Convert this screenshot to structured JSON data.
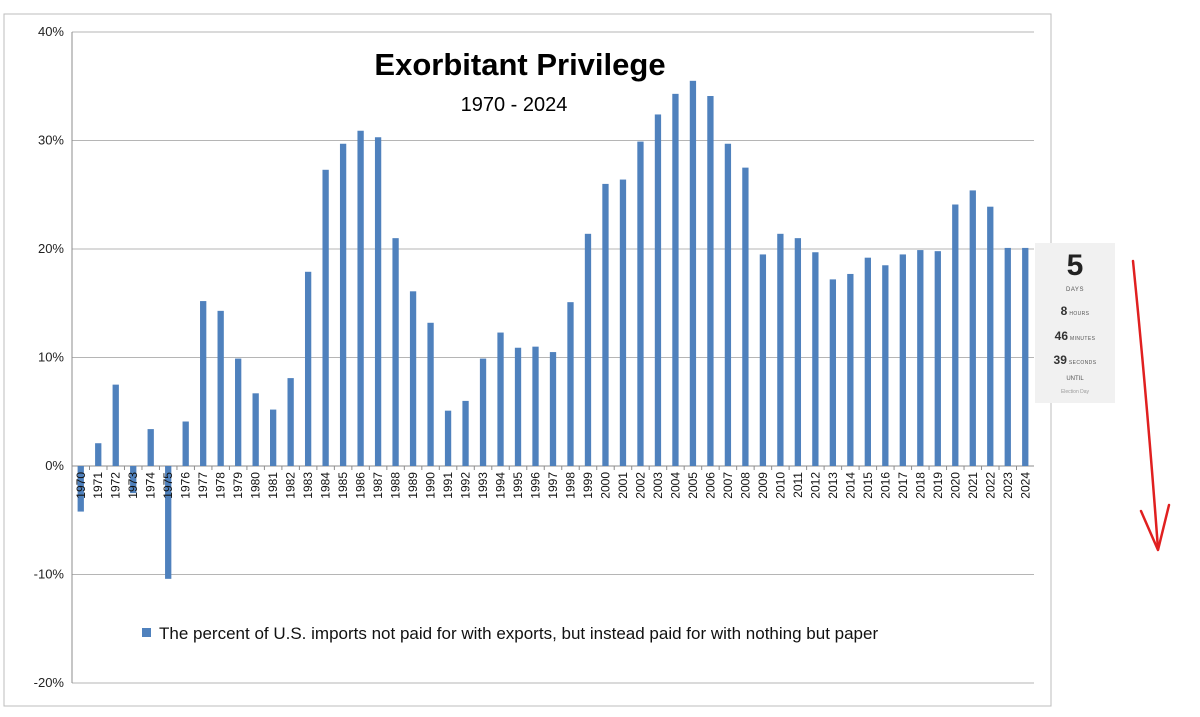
{
  "chart_data": {
    "type": "bar",
    "title": "Exorbitant Privilege",
    "subtitle": "1970 - 2024",
    "xlabel": "",
    "ylabel": "",
    "ylim": [
      -20,
      40
    ],
    "yticks": [
      -20,
      -10,
      0,
      10,
      20,
      30,
      40
    ],
    "ytick_labels": [
      "-20%",
      "-10%",
      "0%",
      "10%",
      "20%",
      "30%",
      "40%"
    ],
    "grid": true,
    "legend_position": "bottom",
    "bar_color": "#4f81bd",
    "categories": [
      "1970",
      "1971",
      "1972",
      "1973",
      "1974",
      "1975",
      "1976",
      "1977",
      "1978",
      "1979",
      "1980",
      "1981",
      "1982",
      "1983",
      "1984",
      "1985",
      "1986",
      "1987",
      "1988",
      "1989",
      "1990",
      "1991",
      "1992",
      "1993",
      "1994",
      "1995",
      "1996",
      "1997",
      "1998",
      "1999",
      "2000",
      "2001",
      "2002",
      "2003",
      "2004",
      "2005",
      "2006",
      "2007",
      "2008",
      "2009",
      "2010",
      "2011",
      "2012",
      "2013",
      "2014",
      "2015",
      "2016",
      "2017",
      "2018",
      "2019",
      "2020",
      "2021",
      "2022",
      "2023",
      "2024"
    ],
    "series": [
      {
        "name": "The percent of U.S. imports not paid for with exports, but instead paid for with nothing but paper",
        "values": [
          -4.2,
          2.1,
          7.5,
          -2.5,
          3.4,
          -10.4,
          4.1,
          15.2,
          14.3,
          9.9,
          6.7,
          5.2,
          8.1,
          17.9,
          27.3,
          29.7,
          30.9,
          30.3,
          21.0,
          16.1,
          13.2,
          5.1,
          6.0,
          9.9,
          12.3,
          10.9,
          11.0,
          10.5,
          15.1,
          21.4,
          26.0,
          26.4,
          29.9,
          32.4,
          34.3,
          35.5,
          34.1,
          29.7,
          27.5,
          19.5,
          21.4,
          21.0,
          19.7,
          17.2,
          17.7,
          19.2,
          18.5,
          19.5,
          19.9,
          19.8,
          24.1,
          25.4,
          23.9,
          20.1,
          20.1
        ]
      }
    ]
  },
  "countdown": {
    "days_value": "5",
    "days_label": "DAYS",
    "hours_value": "8",
    "hours_label": "HOURS",
    "minutes_value": "46",
    "minutes_label": "MINUTES",
    "seconds_value": "39",
    "seconds_label": "SECONDS",
    "until_label": "UNTIL",
    "subtitle": "Election Day"
  },
  "annotation_arrow_color": "#e02020"
}
